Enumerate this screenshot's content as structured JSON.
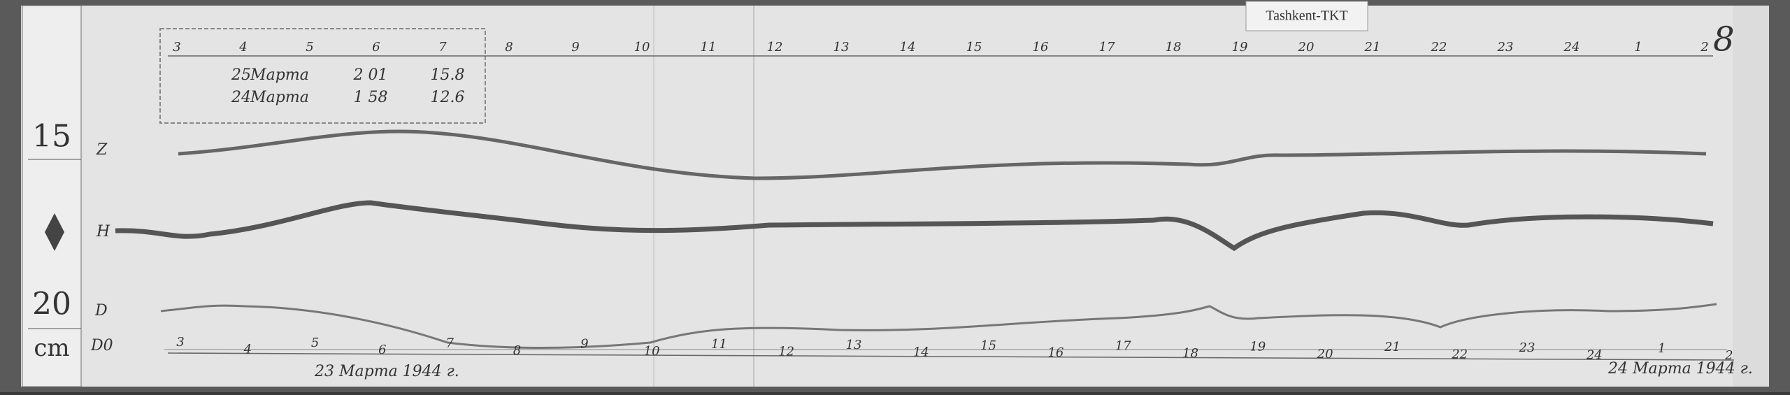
{
  "header_tag": "Tashkent-TKT",
  "sheet_number": "8",
  "hours_top": [
    3,
    4,
    5,
    6,
    7,
    8,
    9,
    10,
    11,
    12,
    13,
    14,
    15,
    16,
    17,
    18,
    19,
    20,
    21,
    22,
    23,
    24,
    1,
    2
  ],
  "hours_bottom": [
    3,
    4,
    5,
    6,
    7,
    8,
    9,
    10,
    11,
    12,
    13,
    14,
    15,
    16,
    17,
    18,
    19,
    20,
    21,
    22,
    23,
    24,
    1,
    2
  ],
  "scale": {
    "upper": "15",
    "lower": "20",
    "unit": "cm"
  },
  "trace_labels": {
    "z": "Z",
    "h": "H",
    "d": "D",
    "d0": "D0"
  },
  "calibration": {
    "rows": [
      [
        "25",
        "Марта",
        "2 01",
        "15.8"
      ],
      [
        "24",
        "Марта",
        "1 58",
        "12.6"
      ]
    ]
  },
  "dates": {
    "start": "23 Марта 1944 г.",
    "end": "24 Марта 1944 г."
  }
}
